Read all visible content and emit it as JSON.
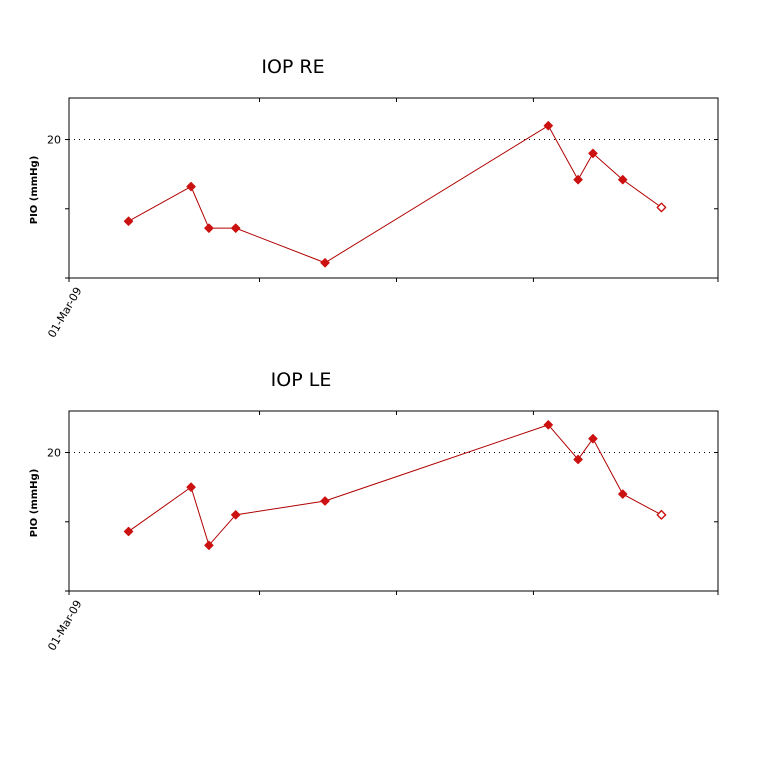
{
  "chart_data": [
    {
      "type": "line",
      "title": "IOP RE",
      "ylabel": "PIO (mmHg)",
      "ytick_labels": [
        "20"
      ],
      "xtick_labels": [
        "01-Mar-09"
      ],
      "reference_line": 20,
      "ylim": [
        10,
        23
      ],
      "grid": false,
      "line_color": "#b00000",
      "marker_color": "#cc1111",
      "series": [
        {
          "x": [
            1,
            2.05,
            2.35,
            2.8,
            4.3,
            8.05,
            8.55,
            8.8,
            9.3,
            9.95
          ],
          "values": [
            14.1,
            16.6,
            13.6,
            13.6,
            11.1,
            21.0,
            17.1,
            19.0,
            17.1,
            15.1
          ],
          "last_point_hollow": true
        }
      ]
    },
    {
      "type": "line",
      "title": "IOP LE",
      "ylabel": "PIO (mmHg)",
      "ytick_labels": [
        "20"
      ],
      "xtick_labels": [
        "01-Mar-09"
      ],
      "reference_line": 20,
      "ylim": [
        10,
        23
      ],
      "grid": false,
      "line_color": "#b00000",
      "marker_color": "#cc1111",
      "series": [
        {
          "x": [
            1,
            2.05,
            2.35,
            2.8,
            4.3,
            8.05,
            8.55,
            8.8,
            9.3,
            9.95
          ],
          "values": [
            14.3,
            17.5,
            13.3,
            15.5,
            16.5,
            22.0,
            19.5,
            21.0,
            17.0,
            15.5
          ],
          "last_point_hollow": true
        }
      ]
    }
  ]
}
